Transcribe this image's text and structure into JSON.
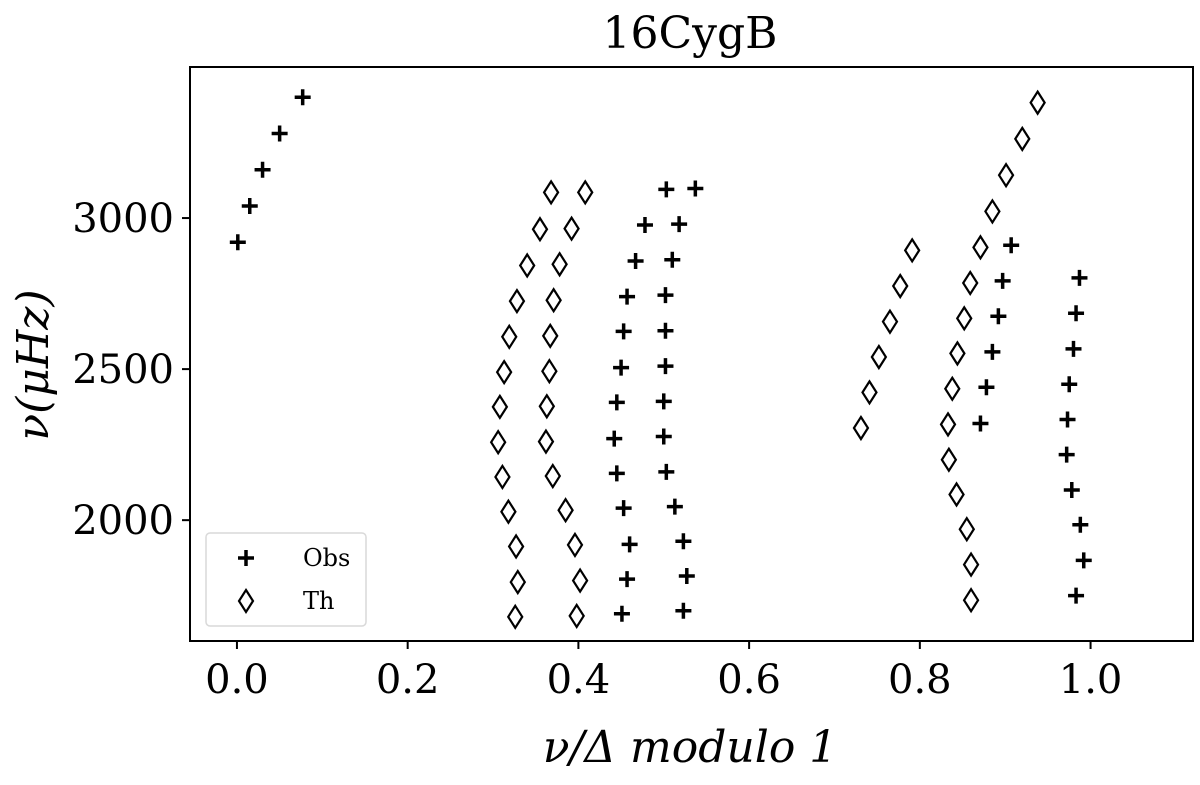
{
  "chart_data": {
    "type": "scatter",
    "title": "16CygB",
    "xlabel": "ν/Δ modulo 1",
    "ylabel": "ν(μHz)",
    "xlim": [
      -0.055,
      1.12
    ],
    "ylim": [
      1600,
      3500
    ],
    "xticks": [
      0.0,
      0.2,
      0.4,
      0.6,
      0.8,
      1.0
    ],
    "xtick_labels": [
      "0.0",
      "0.2",
      "0.4",
      "0.6",
      "0.8",
      "1.0"
    ],
    "yticks": [
      2000,
      2500,
      3000
    ],
    "ytick_labels": [
      "2000",
      "2500",
      "3000"
    ],
    "grid": false,
    "legend_position": "bottom-left",
    "series": [
      {
        "name": "Obs",
        "marker": "plus",
        "color": "#000000",
        "points": [
          [
            0.001,
            2920
          ],
          [
            0.015,
            3040
          ],
          [
            0.03,
            3160
          ],
          [
            0.05,
            3280
          ],
          [
            0.077,
            3400
          ],
          [
            0.451,
            1690
          ],
          [
            0.457,
            1805
          ],
          [
            0.46,
            1920
          ],
          [
            0.453,
            2040
          ],
          [
            0.445,
            2155
          ],
          [
            0.442,
            2270
          ],
          [
            0.445,
            2390
          ],
          [
            0.45,
            2505
          ],
          [
            0.453,
            2625
          ],
          [
            0.457,
            2740
          ],
          [
            0.467,
            2858
          ],
          [
            0.478,
            2977
          ],
          [
            0.503,
            3095
          ],
          [
            0.523,
            1700
          ],
          [
            0.527,
            1815
          ],
          [
            0.523,
            1930
          ],
          [
            0.513,
            2045
          ],
          [
            0.503,
            2160
          ],
          [
            0.5,
            2277
          ],
          [
            0.5,
            2393
          ],
          [
            0.502,
            2510
          ],
          [
            0.502,
            2627
          ],
          [
            0.502,
            2745
          ],
          [
            0.51,
            2862
          ],
          [
            0.518,
            2980
          ],
          [
            0.537,
            3098
          ],
          [
            0.871,
            2320
          ],
          [
            0.878,
            2440
          ],
          [
            0.885,
            2557
          ],
          [
            0.892,
            2675
          ],
          [
            0.897,
            2792
          ],
          [
            0.907,
            2910
          ],
          [
            0.983,
            1750
          ],
          [
            0.992,
            1867
          ],
          [
            0.988,
            1985
          ],
          [
            0.978,
            2100
          ],
          [
            0.972,
            2217
          ],
          [
            0.973,
            2333
          ],
          [
            0.975,
            2450
          ],
          [
            0.98,
            2567
          ],
          [
            0.983,
            2685
          ],
          [
            0.987,
            2802
          ]
        ]
      },
      {
        "name": "Th",
        "marker": "diamond",
        "color": "#000000",
        "points": [
          [
            0.326,
            1680
          ],
          [
            0.329,
            1795
          ],
          [
            0.327,
            1913
          ],
          [
            0.318,
            2028
          ],
          [
            0.311,
            2143
          ],
          [
            0.306,
            2258
          ],
          [
            0.308,
            2375
          ],
          [
            0.313,
            2490
          ],
          [
            0.319,
            2607
          ],
          [
            0.328,
            2725
          ],
          [
            0.34,
            2843
          ],
          [
            0.355,
            2963
          ],
          [
            0.368,
            3085
          ],
          [
            0.398,
            1683
          ],
          [
            0.402,
            1800
          ],
          [
            0.396,
            1918
          ],
          [
            0.385,
            2033
          ],
          [
            0.37,
            2146
          ],
          [
            0.362,
            2260
          ],
          [
            0.363,
            2377
          ],
          [
            0.366,
            2493
          ],
          [
            0.367,
            2610
          ],
          [
            0.371,
            2728
          ],
          [
            0.378,
            2847
          ],
          [
            0.392,
            2965
          ],
          [
            0.408,
            3085
          ],
          [
            0.731,
            2305
          ],
          [
            0.741,
            2423
          ],
          [
            0.752,
            2540
          ],
          [
            0.765,
            2657
          ],
          [
            0.777,
            2775
          ],
          [
            0.791,
            2893
          ],
          [
            0.86,
            1735
          ],
          [
            0.86,
            1853
          ],
          [
            0.855,
            1970
          ],
          [
            0.843,
            2085
          ],
          [
            0.834,
            2200
          ],
          [
            0.833,
            2317
          ],
          [
            0.838,
            2435
          ],
          [
            0.844,
            2552
          ],
          [
            0.852,
            2668
          ],
          [
            0.859,
            2785
          ],
          [
            0.871,
            2903
          ],
          [
            0.885,
            3022
          ],
          [
            0.901,
            3142
          ],
          [
            0.92,
            3262
          ],
          [
            0.938,
            3382
          ]
        ]
      }
    ]
  }
}
